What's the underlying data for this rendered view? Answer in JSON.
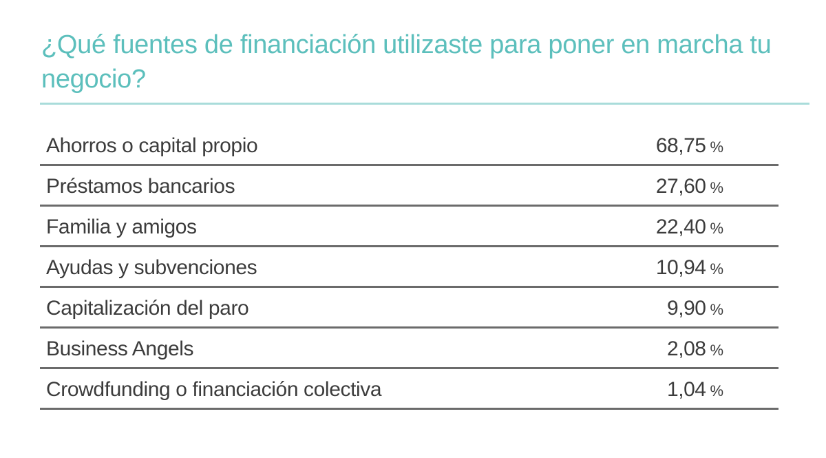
{
  "title": "¿Qué fuentes de financiación utilizaste para poner en marcha tu negocio?",
  "colors": {
    "title": "#5cbfbc",
    "title_rule": "#a9dcda",
    "text": "#3c3c3c",
    "row_rule": "#6b6b6b"
  },
  "rows": [
    {
      "label": "Ahorros o capital propio",
      "value": "68,75",
      "unit": "%"
    },
    {
      "label": "Préstamos bancarios",
      "value": "27,60",
      "unit": "%"
    },
    {
      "label": "Familia y amigos",
      "value": "22,40",
      "unit": "%"
    },
    {
      "label": "Ayudas y subvenciones",
      "value": "10,94",
      "unit": "%"
    },
    {
      "label": "Capitalización del paro",
      "value": "9,90",
      "unit": "%"
    },
    {
      "label": "Business Angels",
      "value": "2,08",
      "unit": "%"
    },
    {
      "label": "Crowdfunding o financiación colectiva",
      "value": "1,04",
      "unit": "%"
    }
  ]
}
